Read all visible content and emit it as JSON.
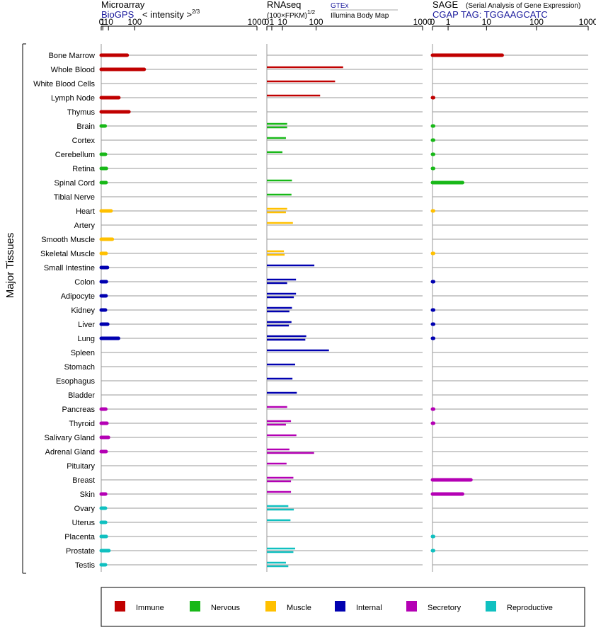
{
  "colors": {
    "Immune": "#c00000",
    "Nervous": "#18b818",
    "Muscle": "#ffc000",
    "Internal": "#0000b0",
    "Secretory": "#b400b4",
    "Reproductive": "#10c0c0",
    "header_blue": "#1a1a9c",
    "grid_line": "#9a9a9a"
  },
  "headers": {
    "microarray": {
      "title": "Microarray",
      "source": "BioGPS",
      "unit_prefix": "< intensity >",
      "unit_exp": "2/3"
    },
    "rnaseq": {
      "title": "RNAseq",
      "unit_prefix": "(100×FPKM)",
      "unit_exp": "1/2",
      "source_top": "GTEx",
      "source_bottom": "Illumina Body Map"
    },
    "sage": {
      "title": "SAGE",
      "subtitle": "(Serial Analysis of Gene Expression)",
      "tag": "CGAP TAG: TGGAAGCATC"
    }
  },
  "side_label": "Major Tissues",
  "chart_data": {
    "type": "bar",
    "orientation": "horizontal",
    "axis_ticks": [
      0,
      1,
      10,
      100,
      1000
    ],
    "axis_tick_labels": [
      "0",
      "1",
      "10",
      "100",
      "1000"
    ],
    "xlim": [
      0,
      1000
    ],
    "panels": [
      {
        "name": "Microarray",
        "scale": "power 2/3"
      },
      {
        "name": "RNAseq",
        "scale": "power 1/2"
      },
      {
        "name": "SAGE",
        "scale": "log(1+x)"
      }
    ],
    "tissues": [
      {
        "name": "Bone Marrow",
        "group": "Immune",
        "microarray": 68,
        "rnaseq": [],
        "sage": [
          21
        ]
      },
      {
        "name": "Whole Blood",
        "group": "Immune",
        "microarray": 145,
        "rnaseq": [
          240
        ],
        "sage": []
      },
      {
        "name": "White Blood Cells",
        "group": "Immune",
        "microarray": null,
        "rnaseq": [
          192
        ],
        "sage": []
      },
      {
        "name": "Lymph Node",
        "group": "Immune",
        "microarray": 38,
        "rnaseq": [
          117
        ],
        "sage": [
          0.02
        ]
      },
      {
        "name": "Thymus",
        "group": "Immune",
        "microarray": 75,
        "rnaseq": [],
        "sage": []
      },
      {
        "name": "Brain",
        "group": "Nervous",
        "microarray": 4,
        "rnaseq": [
          17,
          17
        ],
        "sage": [
          0.02
        ]
      },
      {
        "name": "Cortex",
        "group": "Nervous",
        "microarray": null,
        "rnaseq": [
          15
        ],
        "sage": [
          0.01
        ]
      },
      {
        "name": "Cerebellum",
        "group": "Nervous",
        "microarray": 4.5,
        "rnaseq": [
          10
        ],
        "sage": [
          0.02
        ]
      },
      {
        "name": "Retina",
        "group": "Nervous",
        "microarray": 6,
        "rnaseq": [],
        "sage": [
          0.02
        ]
      },
      {
        "name": "Spinal Cord",
        "group": "Nervous",
        "microarray": 5.5,
        "rnaseq": [
          26
        ],
        "sage": [
          2.8
        ]
      },
      {
        "name": "Tibial Nerve",
        "group": "Nervous",
        "microarray": null,
        "rnaseq": [
          25
        ],
        "sage": []
      },
      {
        "name": "Heart",
        "group": "Muscle",
        "microarray": 16,
        "rnaseq": [
          17,
          15
        ],
        "sage": [
          0.01
        ]
      },
      {
        "name": "Artery",
        "group": "Muscle",
        "microarray": null,
        "rnaseq": [
          28
        ],
        "sage": []
      },
      {
        "name": "Smooth Muscle",
        "group": "Muscle",
        "microarray": 19,
        "rnaseq": [],
        "sage": []
      },
      {
        "name": "Skeletal Muscle",
        "group": "Muscle",
        "microarray": 5.5,
        "rnaseq": [
          12,
          13
        ],
        "sage": [
          0.01
        ]
      },
      {
        "name": "Small Intestine",
        "group": "Internal",
        "microarray": 8,
        "rnaseq": [
          93
        ],
        "sage": []
      },
      {
        "name": "Colon",
        "group": "Internal",
        "microarray": 6,
        "rnaseq": [
          35,
          17
        ],
        "sage": [
          0.05
        ]
      },
      {
        "name": "Adipocyte",
        "group": "Internal",
        "microarray": 5.5,
        "rnaseq": [
          35,
          30
        ],
        "sage": []
      },
      {
        "name": "Kidney",
        "group": "Internal",
        "microarray": 4.5,
        "rnaseq": [
          26,
          21
        ],
        "sage": [
          0.05
        ]
      },
      {
        "name": "Liver",
        "group": "Internal",
        "microarray": 8.5,
        "rnaseq": [
          25,
          20
        ],
        "sage": [
          0.05
        ]
      },
      {
        "name": "Lung",
        "group": "Internal",
        "microarray": 37,
        "rnaseq": [
          64,
          61
        ],
        "sage": [
          0.05
        ]
      },
      {
        "name": "Spleen",
        "group": "Internal",
        "microarray": null,
        "rnaseq": [
          159
        ],
        "sage": []
      },
      {
        "name": "Stomach",
        "group": "Internal",
        "microarray": null,
        "rnaseq": [
          33
        ],
        "sage": []
      },
      {
        "name": "Esophagus",
        "group": "Internal",
        "microarray": null,
        "rnaseq": [
          27
        ],
        "sage": []
      },
      {
        "name": "Bladder",
        "group": "Internal",
        "microarray": null,
        "rnaseq": [
          37
        ],
        "sage": []
      },
      {
        "name": "Pancreas",
        "group": "Secretory",
        "microarray": 5,
        "rnaseq": [
          17
        ],
        "sage": [
          0.05
        ]
      },
      {
        "name": "Thyroid",
        "group": "Secretory",
        "microarray": 7,
        "rnaseq": [
          24,
          15
        ],
        "sage": [
          0.05
        ]
      },
      {
        "name": "Salivary Gland",
        "group": "Secretory",
        "microarray": 10,
        "rnaseq": [
          36
        ],
        "sage": []
      },
      {
        "name": "Adrenal Gland",
        "group": "Secretory",
        "microarray": 5.5,
        "rnaseq": [
          21,
          92
        ],
        "sage": []
      },
      {
        "name": "Pituitary",
        "group": "Secretory",
        "microarray": null,
        "rnaseq": [
          16
        ],
        "sage": []
      },
      {
        "name": "Breast",
        "group": "Secretory",
        "microarray": null,
        "rnaseq": [
          29,
          24
        ],
        "sage": [
          4.5
        ]
      },
      {
        "name": "Skin",
        "group": "Secretory",
        "microarray": 4.7,
        "rnaseq": [
          24
        ],
        "sage": [
          2.8
        ]
      },
      {
        "name": "Ovary",
        "group": "Reproductive",
        "microarray": 4.5,
        "rnaseq": [
          19,
          30
        ],
        "sage": []
      },
      {
        "name": "Uterus",
        "group": "Reproductive",
        "microarray": 4.7,
        "rnaseq": [
          23
        ],
        "sage": []
      },
      {
        "name": "Placenta",
        "group": "Reproductive",
        "microarray": 5.8,
        "rnaseq": [],
        "sage": [
          0.02
        ]
      },
      {
        "name": "Prostate",
        "group": "Reproductive",
        "microarray": 11,
        "rnaseq": [
          33,
          29
        ],
        "sage": [
          0.02
        ]
      },
      {
        "name": "Testis",
        "group": "Reproductive",
        "microarray": 4.5,
        "rnaseq": [
          15,
          19
        ],
        "sage": []
      }
    ],
    "legend": [
      "Immune",
      "Nervous",
      "Muscle",
      "Internal",
      "Secretory",
      "Reproductive"
    ],
    "legend_position": "bottom"
  }
}
